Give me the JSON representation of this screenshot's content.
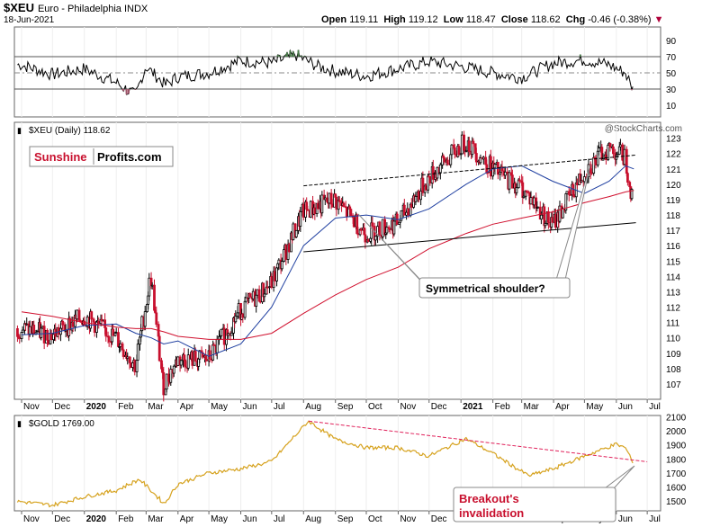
{
  "header": {
    "symbol": "$XEU",
    "name": "Euro - Philadelphia INDX",
    "date": "18-Jun-2021",
    "open_label": "Open",
    "open": "119.11",
    "high_label": "High",
    "high": "119.12",
    "low_label": "Low",
    "low": "118.47",
    "close_label": "Close",
    "close": "118.62",
    "chg_label": "Chg",
    "chg": "-0.46 (-0.38%)",
    "credit": "@StockCharts.com"
  },
  "colors": {
    "price_up": "#000000",
    "price_down": "#c8102e",
    "ma50": "#1f3fa0",
    "ma200": "#d0102e",
    "gold": "#d6a21e",
    "trend": "#000000",
    "gold_trend": "#e0205a",
    "annotation": "#c8102e"
  },
  "chart_data": [
    {
      "type": "line",
      "panel": "rsi",
      "ylim": [
        0,
        100
      ],
      "yticks": [
        10,
        30,
        50,
        70,
        90
      ],
      "ref_lines": [
        30,
        50,
        70
      ],
      "x": [
        "2019-11-01",
        "2019-12-01",
        "2020-01-01",
        "2020-02-01",
        "2020-02-20",
        "2020-03-01",
        "2020-03-20",
        "2020-04-01",
        "2020-05-01",
        "2020-06-01",
        "2020-07-01",
        "2020-07-25",
        "2020-08-15",
        "2020-09-01",
        "2020-10-01",
        "2020-11-01",
        "2020-12-01",
        "2021-01-01",
        "2021-02-01",
        "2021-03-01",
        "2021-04-01",
        "2021-05-01",
        "2021-05-25",
        "2021-06-10",
        "2021-06-18"
      ],
      "series": [
        {
          "values": [
            60,
            48,
            55,
            38,
            22,
            58,
            35,
            45,
            50,
            65,
            62,
            72,
            58,
            52,
            46,
            55,
            64,
            58,
            50,
            44,
            62,
            66,
            60,
            50,
            28
          ]
        }
      ]
    },
    {
      "type": "line",
      "panel": "price",
      "title": "$XEU (Daily) 118.62",
      "brand_1": "Sunshine",
      "brand_2": "Profits.com",
      "annotation": "Symmetrical shoulder?",
      "ylim": [
        106,
        123.8
      ],
      "yticks": [
        107,
        108,
        109,
        110,
        111,
        112,
        113,
        114,
        115,
        116,
        117,
        118,
        119,
        120,
        121,
        122,
        123
      ],
      "x_labels": [
        "Nov",
        "Dec",
        "2020",
        "Feb",
        "Mar",
        "Apr",
        "May",
        "Jun",
        "Jul",
        "Aug",
        "Sep",
        "Oct",
        "Nov",
        "Dec",
        "2021",
        "Feb",
        "Mar",
        "Apr",
        "May",
        "Jun",
        "Jul"
      ],
      "x": [
        "2019-11-01",
        "2019-12-01",
        "2020-01-01",
        "2020-02-01",
        "2020-02-20",
        "2020-03-06",
        "2020-03-18",
        "2020-04-01",
        "2020-05-01",
        "2020-06-01",
        "2020-07-01",
        "2020-08-01",
        "2020-09-01",
        "2020-10-01",
        "2020-11-01",
        "2020-12-01",
        "2021-01-06",
        "2021-02-01",
        "2021-03-01",
        "2021-03-31",
        "2021-05-01",
        "2021-05-25",
        "2021-06-10",
        "2021-06-18"
      ],
      "series": [
        {
          "name": "price",
          "values": [
            110.6,
            110.2,
            111.4,
            110.0,
            108.2,
            114.0,
            106.8,
            108.6,
            108.6,
            111.8,
            113.5,
            118.2,
            119.0,
            116.8,
            117.5,
            120.4,
            122.8,
            121.0,
            119.8,
            117.3,
            120.8,
            122.4,
            121.8,
            118.6
          ]
        },
        {
          "name": "ma50",
          "values": [
            110.2,
            110.3,
            110.8,
            110.9,
            110.3,
            110.0,
            109.6,
            109.8,
            108.8,
            109.6,
            112.0,
            116.0,
            117.8,
            118.0,
            117.7,
            118.4,
            120.0,
            121.0,
            121.2,
            120.2,
            119.4,
            120.2,
            121.2,
            121.0
          ]
        },
        {
          "name": "ma200",
          "values": [
            111.7,
            111.4,
            111.0,
            110.7,
            110.6,
            110.6,
            110.4,
            110.1,
            109.9,
            109.9,
            110.3,
            111.6,
            112.8,
            113.8,
            114.6,
            115.8,
            116.8,
            117.4,
            117.8,
            118.2,
            118.8,
            119.2,
            119.5,
            119.6
          ]
        }
      ],
      "trendlines": [
        {
          "x": [
            "2020-08-01",
            "2021-06-20"
          ],
          "y": [
            119.9,
            121.9
          ],
          "style": "dashed"
        },
        {
          "x": [
            "2020-08-01",
            "2021-06-20"
          ],
          "y": [
            115.6,
            117.5
          ],
          "style": "solid"
        }
      ]
    },
    {
      "type": "line",
      "panel": "gold",
      "title": "$GOLD 1769.00",
      "annotation_line1": "Breakout's",
      "annotation_line2": "invalidation",
      "ylim": [
        1430,
        2110
      ],
      "yticks": [
        1500,
        1600,
        1700,
        1800,
        1900,
        2000,
        2100
      ],
      "x_labels": [
        "Nov",
        "Dec",
        "2020",
        "Feb",
        "Mar",
        "Apr",
        "May",
        "Jun",
        "Jul",
        "Aug",
        "Sep",
        "Oct",
        "Nov",
        "Dec",
        "2021",
        "Feb",
        "Mar",
        "Apr",
        "May",
        "Jun",
        "Jul"
      ],
      "x": [
        "2019-11-01",
        "2019-12-01",
        "2020-01-01",
        "2020-02-01",
        "2020-02-24",
        "2020-03-19",
        "2020-04-01",
        "2020-05-01",
        "2020-06-01",
        "2020-07-01",
        "2020-08-06",
        "2020-09-01",
        "2020-10-01",
        "2020-11-01",
        "2020-12-01",
        "2021-01-06",
        "2021-02-01",
        "2021-03-08",
        "2021-04-01",
        "2021-05-01",
        "2021-06-01",
        "2021-06-10",
        "2021-06-18"
      ],
      "series": [
        {
          "name": "gold",
          "values": [
            1495,
            1470,
            1530,
            1575,
            1655,
            1480,
            1620,
            1700,
            1730,
            1780,
            2070,
            1940,
            1880,
            1880,
            1820,
            1945,
            1840,
            1680,
            1730,
            1820,
            1905,
            1880,
            1769
          ]
        }
      ],
      "trendlines": [
        {
          "x": [
            "2020-08-06",
            "2021-07-01"
          ],
          "y": [
            2070,
            1780
          ],
          "style": "dashed"
        }
      ]
    }
  ]
}
